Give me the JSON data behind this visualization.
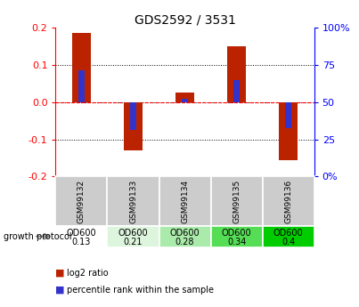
{
  "title": "GDS2592 / 3531",
  "samples": [
    "GSM99132",
    "GSM99133",
    "GSM99134",
    "GSM99135",
    "GSM99136"
  ],
  "log2_ratios": [
    0.185,
    -0.13,
    0.025,
    0.15,
    -0.155
  ],
  "percentile_ranks": [
    0.085,
    -0.075,
    0.01,
    0.06,
    -0.07
  ],
  "growth_protocol": "growth protocol",
  "protocol_labels_line1": [
    "OD600",
    "OD600",
    "OD600",
    "OD600",
    "OD600"
  ],
  "protocol_labels_line2": [
    "0.13",
    "0.21",
    "0.28",
    "0.34",
    "0.4"
  ],
  "protocol_colors": [
    "#ffffff",
    "#ddf5dd",
    "#aaeaaa",
    "#55dd55",
    "#00cc00"
  ],
  "bar_color": "#bb2200",
  "percentile_color": "#3333cc",
  "ylim": [
    -0.2,
    0.2
  ],
  "yticks": [
    -0.2,
    -0.1,
    0.0,
    0.1,
    0.2
  ],
  "background_color": "#ffffff",
  "sample_bg_color": "#cccccc",
  "bar_width": 0.35,
  "pct_bar_width": 0.12
}
